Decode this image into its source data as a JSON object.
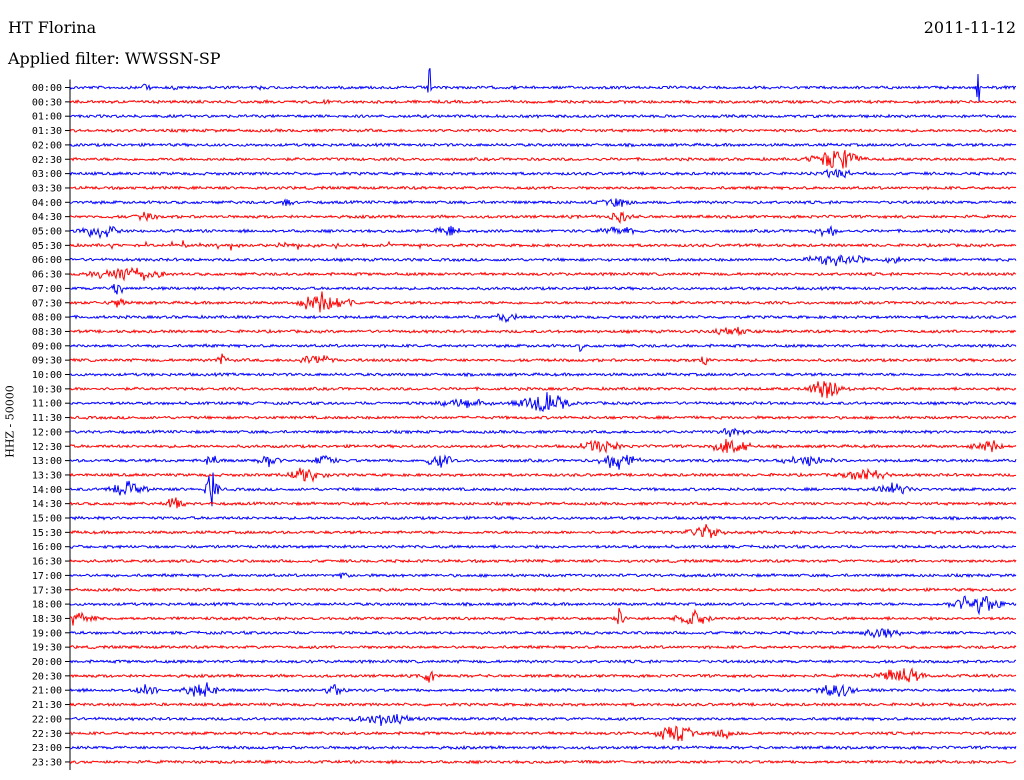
{
  "header": {
    "station": "HT Florina",
    "date": "2011-11-12",
    "filter": "Applied filter: WWSSN-SP"
  },
  "chart_data": {
    "type": "line",
    "title": "HT Florina",
    "ylabel": "HHZ - 50000",
    "colors": [
      "#0000ff",
      "#ff0000"
    ],
    "rows": [
      "00:00",
      "00:30",
      "01:00",
      "01:30",
      "02:00",
      "02:30",
      "03:00",
      "03:30",
      "04:00",
      "04:30",
      "05:00",
      "05:30",
      "06:00",
      "06:30",
      "07:00",
      "07:30",
      "08:00",
      "08:30",
      "09:00",
      "09:30",
      "10:00",
      "10:30",
      "11:00",
      "11:30",
      "12:00",
      "12:30",
      "13:00",
      "13:30",
      "14:00",
      "14:30",
      "15:00",
      "15:30",
      "16:00",
      "16:30",
      "17:00",
      "17:30",
      "18:00",
      "18:30",
      "19:00",
      "19:30",
      "20:00",
      "20:30",
      "21:00",
      "21:30",
      "22:00",
      "22:30",
      "23:00",
      "23:30"
    ],
    "events": [
      {
        "row": 0,
        "t": 0.08,
        "amp": 6,
        "dur": 0.01
      },
      {
        "row": 0,
        "t": 0.11,
        "amp": 5,
        "dur": 0.008
      },
      {
        "row": 0,
        "t": 0.2,
        "amp": 4,
        "dur": 0.005
      },
      {
        "row": 0,
        "t": 0.38,
        "amp": 45,
        "dur": 0.002
      },
      {
        "row": 0,
        "t": 0.96,
        "amp": 50,
        "dur": 0.002
      },
      {
        "row": 1,
        "t": 0.27,
        "amp": 5,
        "dur": 0.01
      },
      {
        "row": 5,
        "t": 0.81,
        "amp": 14,
        "dur": 0.04
      },
      {
        "row": 6,
        "t": 0.81,
        "amp": 6,
        "dur": 0.03
      },
      {
        "row": 8,
        "t": 0.23,
        "amp": 7,
        "dur": 0.01
      },
      {
        "row": 8,
        "t": 0.58,
        "amp": 6,
        "dur": 0.03
      },
      {
        "row": 9,
        "t": 0.58,
        "amp": 8,
        "dur": 0.02
      },
      {
        "row": 9,
        "t": 0.08,
        "amp": 6,
        "dur": 0.02
      },
      {
        "row": 10,
        "t": 0.03,
        "amp": 10,
        "dur": 0.03
      },
      {
        "row": 10,
        "t": 0.4,
        "amp": 8,
        "dur": 0.02
      },
      {
        "row": 10,
        "t": 0.58,
        "amp": 7,
        "dur": 0.03
      },
      {
        "row": 10,
        "t": 0.8,
        "amp": 8,
        "dur": 0.02
      },
      {
        "row": 11,
        "t": 0.04,
        "amp": 6,
        "dur": 0.36
      },
      {
        "row": 12,
        "t": 0.81,
        "amp": 8,
        "dur": 0.05
      },
      {
        "row": 12,
        "t": 0.87,
        "amp": 6,
        "dur": 0.02
      },
      {
        "row": 13,
        "t": 0.06,
        "amp": 10,
        "dur": 0.06
      },
      {
        "row": 14,
        "t": 0.05,
        "amp": 10,
        "dur": 0.01
      },
      {
        "row": 15,
        "t": 0.27,
        "amp": 13,
        "dur": 0.04
      },
      {
        "row": 15,
        "t": 0.05,
        "amp": 6,
        "dur": 0.02
      },
      {
        "row": 15,
        "t": 0.25,
        "amp": 20,
        "dur": 0.003
      },
      {
        "row": 16,
        "t": 0.46,
        "amp": 7,
        "dur": 0.02
      },
      {
        "row": 17,
        "t": 0.7,
        "amp": 6,
        "dur": 0.03
      },
      {
        "row": 18,
        "t": 0.54,
        "amp": 20,
        "dur": 0.002
      },
      {
        "row": 19,
        "t": 0.16,
        "amp": 9,
        "dur": 0.01
      },
      {
        "row": 19,
        "t": 0.26,
        "amp": 8,
        "dur": 0.03
      },
      {
        "row": 19,
        "t": 0.67,
        "amp": 8,
        "dur": 0.01
      },
      {
        "row": 21,
        "t": 0.8,
        "amp": 14,
        "dur": 0.03
      },
      {
        "row": 22,
        "t": 0.42,
        "amp": 6,
        "dur": 0.05
      },
      {
        "row": 22,
        "t": 0.5,
        "amp": 14,
        "dur": 0.04
      },
      {
        "row": 24,
        "t": 0.7,
        "amp": 8,
        "dur": 0.02
      },
      {
        "row": 25,
        "t": 0.56,
        "amp": 10,
        "dur": 0.03
      },
      {
        "row": 25,
        "t": 0.7,
        "amp": 12,
        "dur": 0.03
      },
      {
        "row": 25,
        "t": 0.97,
        "amp": 8,
        "dur": 0.03
      },
      {
        "row": 26,
        "t": 0.15,
        "amp": 12,
        "dur": 0.01
      },
      {
        "row": 26,
        "t": 0.21,
        "amp": 8,
        "dur": 0.02
      },
      {
        "row": 26,
        "t": 0.27,
        "amp": 8,
        "dur": 0.02
      },
      {
        "row": 26,
        "t": 0.39,
        "amp": 10,
        "dur": 0.02
      },
      {
        "row": 26,
        "t": 0.58,
        "amp": 12,
        "dur": 0.03
      },
      {
        "row": 26,
        "t": 0.78,
        "amp": 6,
        "dur": 0.05
      },
      {
        "row": 27,
        "t": 0.25,
        "amp": 10,
        "dur": 0.03
      },
      {
        "row": 27,
        "t": 0.84,
        "amp": 8,
        "dur": 0.04
      },
      {
        "row": 28,
        "t": 0.06,
        "amp": 10,
        "dur": 0.03
      },
      {
        "row": 28,
        "t": 0.15,
        "amp": 25,
        "dur": 0.01
      },
      {
        "row": 28,
        "t": 0.87,
        "amp": 8,
        "dur": 0.03
      },
      {
        "row": 29,
        "t": 0.11,
        "amp": 8,
        "dur": 0.02
      },
      {
        "row": 31,
        "t": 0.67,
        "amp": 10,
        "dur": 0.03
      },
      {
        "row": 34,
        "t": 0.29,
        "amp": 5,
        "dur": 0.01
      },
      {
        "row": 36,
        "t": 0.96,
        "amp": 14,
        "dur": 0.04
      },
      {
        "row": 37,
        "t": 0.0,
        "amp": 10,
        "dur": 0.04
      },
      {
        "row": 37,
        "t": 0.58,
        "amp": 14,
        "dur": 0.01
      },
      {
        "row": 37,
        "t": 0.66,
        "amp": 10,
        "dur": 0.03
      },
      {
        "row": 38,
        "t": 0.86,
        "amp": 8,
        "dur": 0.03
      },
      {
        "row": 41,
        "t": 0.38,
        "amp": 12,
        "dur": 0.01
      },
      {
        "row": 41,
        "t": 0.88,
        "amp": 10,
        "dur": 0.04
      },
      {
        "row": 42,
        "t": 0.08,
        "amp": 8,
        "dur": 0.02
      },
      {
        "row": 42,
        "t": 0.14,
        "amp": 10,
        "dur": 0.03
      },
      {
        "row": 42,
        "t": 0.28,
        "amp": 8,
        "dur": 0.02
      },
      {
        "row": 42,
        "t": 0.81,
        "amp": 10,
        "dur": 0.03
      },
      {
        "row": 44,
        "t": 0.33,
        "amp": 8,
        "dur": 0.05
      },
      {
        "row": 45,
        "t": 0.64,
        "amp": 12,
        "dur": 0.03
      },
      {
        "row": 45,
        "t": 0.69,
        "amp": 8,
        "dur": 0.02
      }
    ]
  }
}
